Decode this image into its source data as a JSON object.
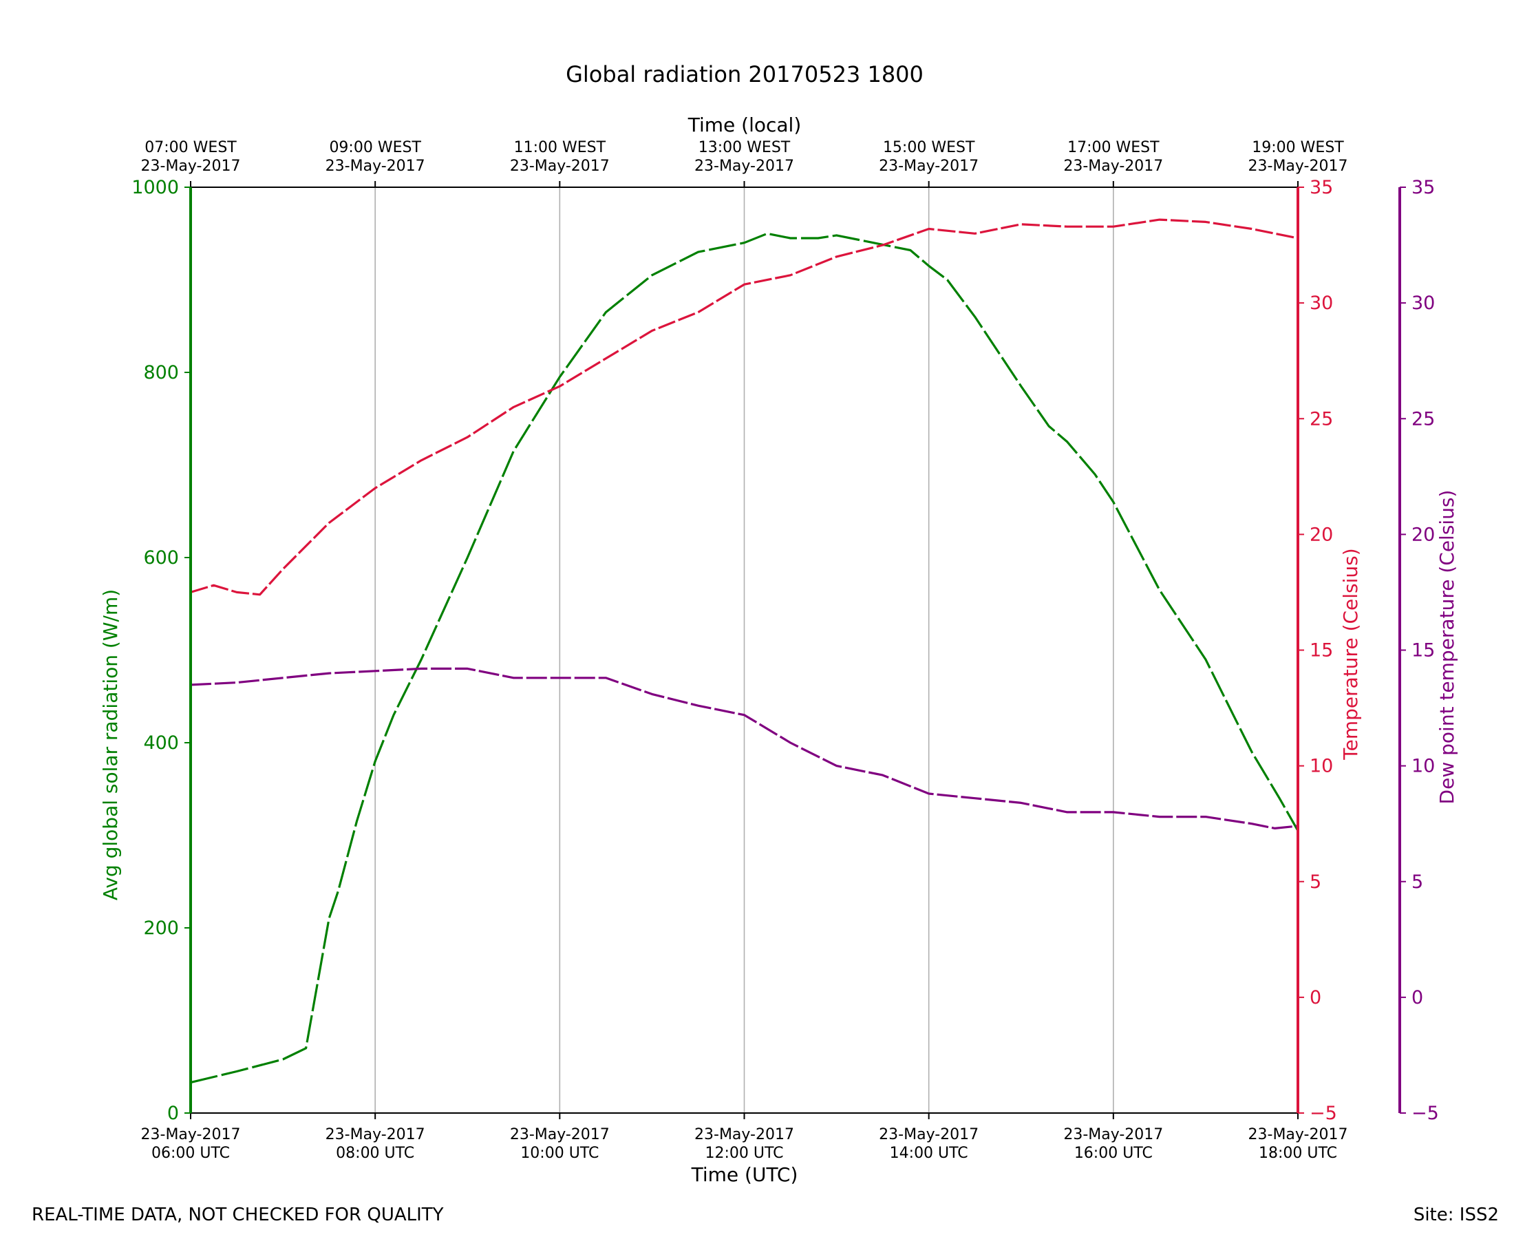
{
  "footer": {
    "note": "REAL-TIME DATA, NOT CHECKED FOR QUALITY",
    "site": "Site: ISS2"
  },
  "chart_data": {
    "type": "line",
    "title": "Global radiation 20170523 1800",
    "xlabel": "Time (UTC)",
    "top_xlabel": "Time (local)",
    "x_range_hours_utc": [
      6,
      18
    ],
    "x_ticks": [
      {
        "hour": 6,
        "utc": [
          "23-May-2017",
          "06:00 UTC"
        ],
        "local": [
          "07:00 WEST",
          "23-May-2017"
        ]
      },
      {
        "hour": 8,
        "utc": [
          "23-May-2017",
          "08:00 UTC"
        ],
        "local": [
          "09:00 WEST",
          "23-May-2017"
        ]
      },
      {
        "hour": 10,
        "utc": [
          "23-May-2017",
          "10:00 UTC"
        ],
        "local": [
          "11:00 WEST",
          "23-May-2017"
        ]
      },
      {
        "hour": 12,
        "utc": [
          "23-May-2017",
          "12:00 UTC"
        ],
        "local": [
          "13:00 WEST",
          "23-May-2017"
        ]
      },
      {
        "hour": 14,
        "utc": [
          "23-May-2017",
          "14:00 UTC"
        ],
        "local": [
          "15:00 WEST",
          "23-May-2017"
        ]
      },
      {
        "hour": 16,
        "utc": [
          "23-May-2017",
          "16:00 UTC"
        ],
        "local": [
          "17:00 WEST",
          "23-May-2017"
        ]
      },
      {
        "hour": 18,
        "utc": [
          "23-May-2017",
          "18:00 UTC"
        ],
        "local": [
          "19:00 WEST",
          "23-May-2017"
        ]
      }
    ],
    "grid": "vertical",
    "axes": [
      {
        "id": "radiation",
        "label": "Avg global solar radiation (W/m)",
        "side": "left",
        "ylim": [
          0,
          1000
        ],
        "ticks": [
          0,
          200,
          400,
          600,
          800,
          1000
        ],
        "color": "#008000"
      },
      {
        "id": "temp",
        "label": "Temperature (Celsius)",
        "side": "right",
        "ylim": [
          -5,
          35
        ],
        "ticks": [
          -5,
          0,
          5,
          10,
          15,
          20,
          25,
          30,
          35
        ],
        "color": "#DC143C"
      },
      {
        "id": "dew",
        "label": "Dew point temperature (Celsius)",
        "side": "right-outer",
        "ylim": [
          -5,
          35
        ],
        "ticks": [
          -5,
          0,
          5,
          10,
          15,
          20,
          25,
          30,
          35
        ],
        "color": "#800080"
      }
    ],
    "series": [
      {
        "name": "Avg global solar radiation",
        "axis": "radiation",
        "color": "#008000",
        "x": [
          6.0,
          6.5,
          7.0,
          7.25,
          7.5,
          7.6,
          7.8,
          8.0,
          8.2,
          8.5,
          9.0,
          9.5,
          10.0,
          10.5,
          11.0,
          11.5,
          12.0,
          12.25,
          12.5,
          12.8,
          13.0,
          13.4,
          13.8,
          14.0,
          14.2,
          14.5,
          14.8,
          15.0,
          15.3,
          15.5,
          15.8,
          16.0,
          16.5,
          17.0,
          17.3,
          17.5,
          17.8,
          18.0
        ],
        "values": [
          33,
          45,
          58,
          70,
          210,
          240,
          315,
          380,
          430,
          490,
          600,
          715,
          795,
          865,
          905,
          930,
          940,
          950,
          945,
          945,
          948,
          940,
          932,
          915,
          900,
          860,
          815,
          785,
          742,
          725,
          690,
          660,
          565,
          490,
          430,
          390,
          340,
          305
        ]
      },
      {
        "name": "Temperature",
        "axis": "temp",
        "color": "#DC143C",
        "x": [
          6.0,
          6.25,
          6.5,
          6.75,
          7.0,
          7.5,
          8.0,
          8.5,
          9.0,
          9.5,
          10.0,
          10.5,
          11.0,
          11.5,
          12.0,
          12.5,
          13.0,
          13.5,
          14.0,
          14.5,
          15.0,
          15.5,
          16.0,
          16.5,
          17.0,
          17.5,
          18.0
        ],
        "values": [
          17.5,
          17.8,
          17.5,
          17.4,
          18.5,
          20.5,
          22.0,
          23.2,
          24.2,
          25.5,
          26.4,
          27.6,
          28.8,
          29.6,
          30.8,
          31.2,
          32.0,
          32.5,
          33.2,
          33.0,
          33.4,
          33.3,
          33.3,
          33.6,
          33.5,
          33.2,
          32.8
        ]
      },
      {
        "name": "Dew point temperature",
        "axis": "dew",
        "color": "#800080",
        "x": [
          6.0,
          6.5,
          7.0,
          7.5,
          8.0,
          8.5,
          9.0,
          9.5,
          10.0,
          10.5,
          11.0,
          11.5,
          12.0,
          12.5,
          13.0,
          13.5,
          14.0,
          14.5,
          15.0,
          15.5,
          16.0,
          16.5,
          17.0,
          17.5,
          17.75,
          18.0
        ],
        "values": [
          13.5,
          13.6,
          13.8,
          14.0,
          14.1,
          14.2,
          14.2,
          13.8,
          13.8,
          13.8,
          13.1,
          12.6,
          12.2,
          11.0,
          10.0,
          9.6,
          8.8,
          8.6,
          8.4,
          8.0,
          8.0,
          7.8,
          7.8,
          7.5,
          7.3,
          7.4
        ]
      }
    ]
  }
}
